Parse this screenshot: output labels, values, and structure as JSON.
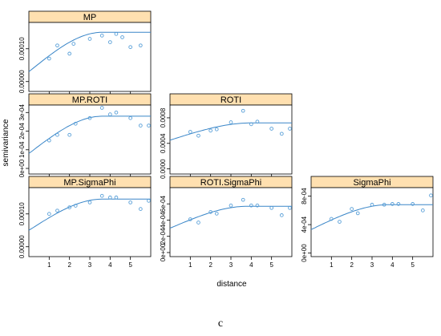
{
  "caption": "c",
  "chart_data": {
    "type": "scatter",
    "layout": "trellis-3x3-lower-triangle",
    "xlabel": "distance",
    "ylabel": "semivariance",
    "xlim": [
      0,
      6
    ],
    "x_ticks": [
      1,
      2,
      3,
      4,
      5
    ],
    "colors": {
      "points": "#5aa0d8",
      "curve": "#3a86c8",
      "strip": "#ffe0b0"
    },
    "panels": [
      {
        "name": "MP",
        "row": 0,
        "col": 0,
        "ylim": [
          -3e-05,
          0.00018
        ],
        "y_ticks": [
          0.0,
          0.0001
        ],
        "y_tick_labels": [
          "0.00000",
          "0.00010"
        ],
        "x": [
          1.0,
          1.4,
          2.0,
          2.2,
          3.0,
          3.6,
          4.0,
          4.3,
          4.6,
          5.0,
          5.5
        ],
        "y": [
          7e-05,
          0.00011,
          8.5e-05,
          0.000115,
          0.00013,
          0.00014,
          0.00012,
          0.000145,
          0.000135,
          0.000105,
          0.00011
        ],
        "model": {
          "nugget": 3e-05,
          "sill": 0.00015,
          "range": 3.6
        }
      },
      {
        "name": "MP.ROTI",
        "row": 1,
        "col": 0,
        "ylim": [
          -3e-05,
          0.00034
        ],
        "y_ticks": [
          0.0,
          0.0001,
          0.0002,
          0.0003
        ],
        "y_tick_labels": [
          "0e+00",
          "1e-04",
          "2e-04",
          "3e-04"
        ],
        "x": [
          1.0,
          1.4,
          2.0,
          2.3,
          3.0,
          3.6,
          4.0,
          4.3,
          5.0,
          5.5,
          5.9
        ],
        "y": [
          0.00015,
          0.00018,
          0.00018,
          0.00024,
          0.00027,
          0.000325,
          0.00029,
          0.0003,
          0.00027,
          0.00023,
          0.00023
        ],
        "model": {
          "nugget": 8e-05,
          "sill": 0.00028,
          "range": 3.6
        }
      },
      {
        "name": "MP.SigmaPhi",
        "row": 2,
        "col": 0,
        "ylim": [
          -3e-05,
          0.00018
        ],
        "y_ticks": [
          0.0,
          0.0001
        ],
        "y_tick_labels": [
          "0.00000",
          "0.00010"
        ],
        "x": [
          1.0,
          1.4,
          2.0,
          2.3,
          3.0,
          3.6,
          4.0,
          4.3,
          5.0,
          5.5,
          5.9
        ],
        "y": [
          0.0001,
          0.00011,
          0.00012,
          0.000125,
          0.000135,
          0.000155,
          0.00015,
          0.00015,
          0.000135,
          0.000115,
          0.00014
        ],
        "model": {
          "nugget": 5e-05,
          "sill": 0.000145,
          "range": 3.6
        }
      },
      {
        "name": "ROTI",
        "row": 1,
        "col": 1,
        "ylim": [
          -8e-05,
          0.001
        ],
        "y_ticks": [
          0.0,
          0.0004,
          0.0008
        ],
        "y_tick_labels": [
          "0.0000",
          "0.0004",
          "0.0008"
        ],
        "x": [
          1.0,
          1.4,
          2.0,
          2.3,
          3.0,
          3.6,
          4.0,
          4.3,
          5.0,
          5.5,
          5.9
        ],
        "y": [
          0.00058,
          0.00052,
          0.0006,
          0.00062,
          0.00073,
          0.00091,
          0.0007,
          0.00074,
          0.00063,
          0.00055,
          0.00063
        ],
        "model": {
          "nugget": 0.00045,
          "sill": 0.00072,
          "range": 4.0
        }
      },
      {
        "name": "ROTI.SigmaPhi",
        "row": 2,
        "col": 1,
        "ylim": [
          -5e-05,
          0.0008
        ],
        "y_ticks": [
          0.0,
          0.0002,
          0.0004,
          0.0006
        ],
        "y_tick_labels": [
          "0e+00",
          "2e-04",
          "4e-04",
          "6e-04"
        ],
        "x": [
          1.0,
          1.4,
          2.0,
          2.3,
          3.0,
          3.6,
          4.0,
          4.3,
          5.0,
          5.5,
          5.9
        ],
        "y": [
          0.00041,
          0.00037,
          0.0005,
          0.00048,
          0.00058,
          0.00065,
          0.00058,
          0.00058,
          0.00055,
          0.00046,
          0.00055
        ],
        "model": {
          "nugget": 0.0003,
          "sill": 0.00057,
          "range": 3.8
        }
      },
      {
        "name": "SigmaPhi",
        "row": 2,
        "col": 2,
        "ylim": [
          -5e-05,
          0.00092
        ],
        "y_ticks": [
          0.0,
          0.0004,
          0.0008
        ],
        "y_tick_labels": [
          "0e+00",
          "4e-04",
          "8e-04"
        ],
        "x": [
          1.0,
          1.4,
          2.0,
          2.3,
          3.0,
          3.6,
          4.0,
          4.3,
          5.0,
          5.5,
          5.9
        ],
        "y": [
          0.00048,
          0.00044,
          0.00062,
          0.00056,
          0.00068,
          0.00068,
          0.00069,
          0.00069,
          0.00069,
          0.0006,
          0.00081
        ],
        "model": {
          "nugget": 0.00033,
          "sill": 0.00068,
          "range": 3.8
        }
      }
    ]
  }
}
